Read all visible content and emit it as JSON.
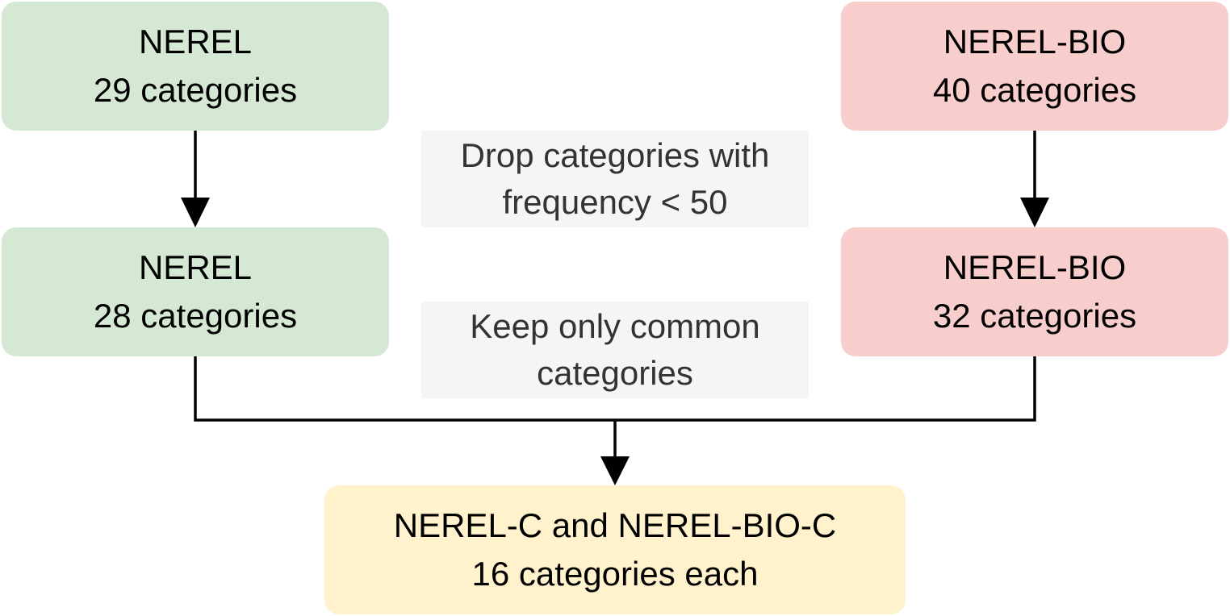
{
  "nodes": {
    "nerel_top": {
      "title": "NEREL",
      "subtitle": "29 categories",
      "color": "#d5e8d4"
    },
    "nerel_bio_top": {
      "title": "NEREL-BIO",
      "subtitle": "40 categories",
      "color": "#f8cecc"
    },
    "nerel_mid": {
      "title": "NEREL",
      "subtitle": "28 categories",
      "color": "#d5e8d4"
    },
    "nerel_bio_mid": {
      "title": "NEREL-BIO",
      "subtitle": "32 categories",
      "color": "#f8cecc"
    },
    "combined": {
      "title": "NEREL-C and NEREL-BIO-C",
      "subtitle": "16 categories each",
      "color": "#fff2cc"
    }
  },
  "annotations": {
    "drop_step": {
      "line1": "Drop categories with",
      "line2": "frequency < 50"
    },
    "keep_step": {
      "line1": "Keep only common",
      "line2": "categories"
    }
  },
  "edges": [
    {
      "from": "nerel_top",
      "to": "nerel_mid"
    },
    {
      "from": "nerel_bio_top",
      "to": "nerel_bio_mid"
    },
    {
      "from": "nerel_mid",
      "to": "combined"
    },
    {
      "from": "nerel_bio_mid",
      "to": "combined"
    }
  ]
}
